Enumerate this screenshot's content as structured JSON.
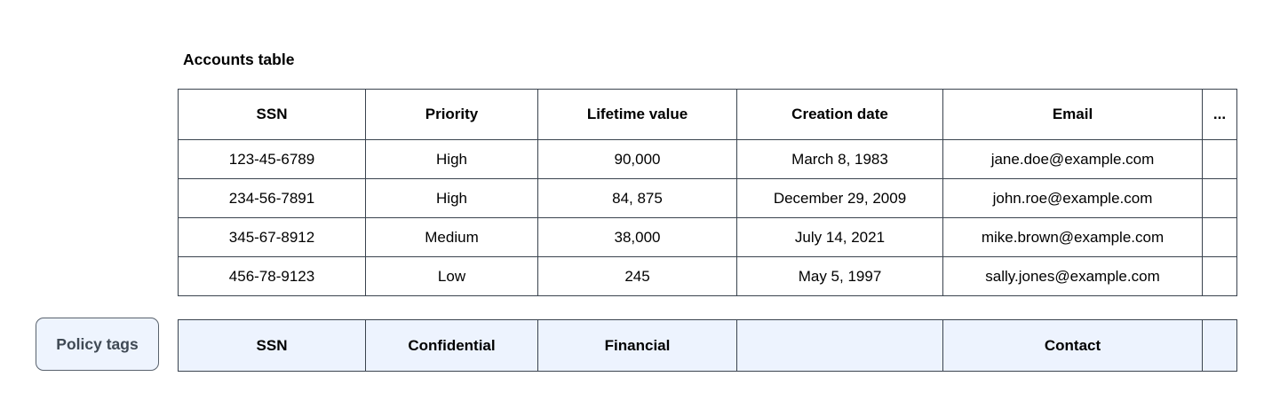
{
  "title": "Accounts table",
  "table": {
    "columns": [
      "SSN",
      "Priority",
      "Lifetime value",
      "Creation date",
      "Email",
      "..."
    ],
    "rows": [
      [
        "123-45-6789",
        "High",
        "90,000",
        "March 8, 1983",
        "jane.doe@example.com",
        ""
      ],
      [
        "234-56-7891",
        "High",
        "84, 875",
        "December 29, 2009",
        "john.roe@example.com",
        ""
      ],
      [
        "345-67-8912",
        "Medium",
        "38,000",
        "July 14, 2021",
        "mike.brown@example.com",
        ""
      ],
      [
        "456-78-9123",
        "Low",
        "245",
        "May 5, 1997",
        "sally.jones@example.com",
        ""
      ]
    ]
  },
  "policy": {
    "label": "Policy tags",
    "tags": [
      "SSN",
      "Confidential",
      "Financial",
      "",
      "Contact",
      ""
    ]
  },
  "colors": {
    "table_border": "#3a434e",
    "policy_row_fill": "#edf3fe",
    "policy_button_fill": "#eef4fe",
    "policy_button_border": "#59626d",
    "policy_button_text": "#3f4954",
    "text": "#000000",
    "background": "#ffffff"
  }
}
